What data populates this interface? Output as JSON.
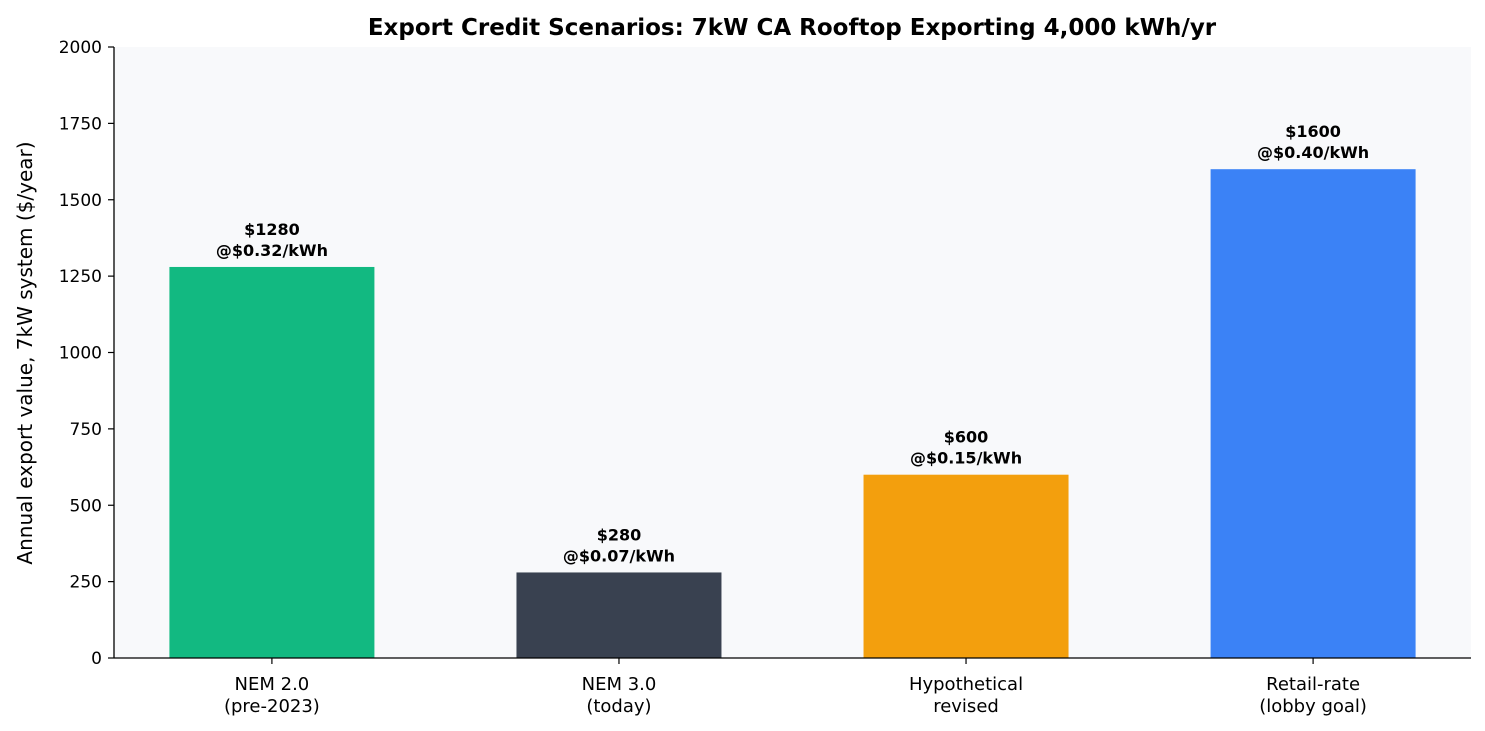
{
  "chart_data": {
    "type": "bar",
    "title": "Export Credit Scenarios: 7kW CA Rooftop Exporting 4,000 kWh/yr",
    "xlabel": "",
    "ylabel": "Annual export value, 7kW system ($/year)",
    "ylim": [
      0,
      2000
    ],
    "yticks": [
      0,
      250,
      500,
      750,
      1000,
      1250,
      1500,
      1750,
      2000
    ],
    "categories": [
      [
        "NEM 2.0",
        "(pre-2023)"
      ],
      [
        "NEM 3.0",
        "(today)"
      ],
      [
        "Hypothetical",
        "revised"
      ],
      [
        "Retail-rate",
        "(lobby goal)"
      ]
    ],
    "values": [
      1280,
      280,
      600,
      1600
    ],
    "bar_labels": [
      [
        "$1280",
        "@$0.32/kWh"
      ],
      [
        "$280",
        "@$0.07/kWh"
      ],
      [
        "$600",
        "@$0.15/kWh"
      ],
      [
        "$1600",
        "@$0.40/kWh"
      ]
    ],
    "colors": [
      "#12b981",
      "#394150",
      "#f39f0d",
      "#3b82f6"
    ],
    "plot_background": "#f8f9fb",
    "grid": false,
    "legend": "none"
  }
}
